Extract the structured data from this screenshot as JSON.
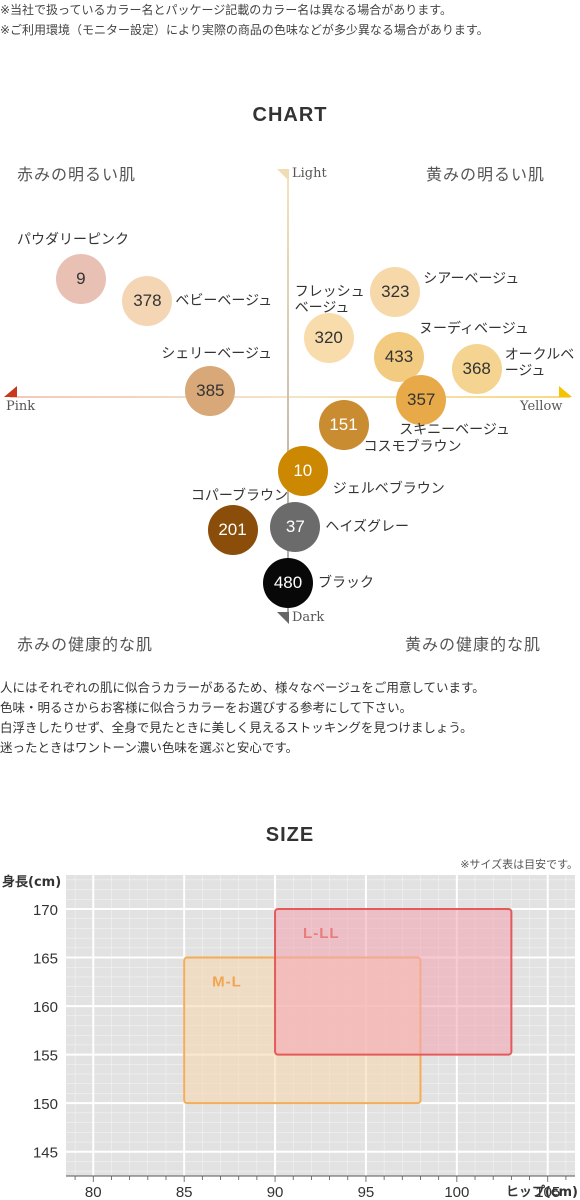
{
  "notes": [
    "※当社で扱っているカラー名とパッケージ記載のカラー名は異なる場合があります。",
    "※ご利用環境（モニター設定）により実際の商品の色味などが多少異なる場合があります。"
  ],
  "chart_title": "CHART",
  "chart_data": [
    {
      "type": "scatter",
      "title": "CHART",
      "axes": {
        "x": {
          "left_label": "Pink",
          "right_label": "Yellow"
        },
        "y": {
          "top_label": "Light",
          "bottom_label": "Dark"
        }
      },
      "quadrants": {
        "top_left": "赤みの明るい肌",
        "top_right": "黄みの明るい肌",
        "bottom_left": "赤みの健康的な肌",
        "bottom_right": "黄みの健康的な肌"
      },
      "points": [
        {
          "code": "9",
          "name": "パウダリーピンク",
          "x": -5.6,
          "y": 3.8,
          "color": "#e8c0b4",
          "text_color": "#333333"
        },
        {
          "code": "378",
          "name": "ベビーベージュ",
          "x": -3.8,
          "y": 3.1,
          "color": "#f5d6b4",
          "text_color": "#333333"
        },
        {
          "code": "385",
          "name": "シェリーベージュ",
          "x": -2.1,
          "y": 0.2,
          "color": "#d8a878",
          "text_color": "#333333"
        },
        {
          "code": "320",
          "name": "フレッシュベージュ",
          "x": 1.1,
          "y": 1.9,
          "color": "#f9dcac",
          "text_color": "#333333"
        },
        {
          "code": "323",
          "name": "シアーベージュ",
          "x": 2.9,
          "y": 3.4,
          "color": "#f7d8a8",
          "text_color": "#333333"
        },
        {
          "code": "433",
          "name": "ヌーディベージュ",
          "x": 3.0,
          "y": 1.3,
          "color": "#f2ca80",
          "text_color": "#333333"
        },
        {
          "code": "368",
          "name": "オークルベージュ",
          "x": 5.1,
          "y": 0.9,
          "color": "#f4d490",
          "text_color": "#333333"
        },
        {
          "code": "357",
          "name": "スキニーベージュ",
          "x": 3.6,
          "y": -0.1,
          "color": "#e8aa48",
          "text_color": "#333333"
        },
        {
          "code": "151",
          "name": "コスモブラウン",
          "x": 1.5,
          "y": -0.9,
          "color": "#c98c30",
          "text_color": "#ffffff"
        },
        {
          "code": "10",
          "name": "ジェルベブラウン",
          "x": 0.4,
          "y": -2.4,
          "color": "#cc8800",
          "text_color": "#ffffff"
        },
        {
          "code": "201",
          "name": "コパーブラウン",
          "x": -1.5,
          "y": -4.3,
          "color": "#8a4e0a",
          "text_color": "#ffffff"
        },
        {
          "code": "37",
          "name": "ヘイズグレー",
          "x": 0.2,
          "y": -4.2,
          "color": "#6b6b6b",
          "text_color": "#ffffff"
        },
        {
          "code": "480",
          "name": "ブラック",
          "x": 0.0,
          "y": -6.0,
          "color": "#080808",
          "text_color": "#ffffff"
        }
      ]
    },
    {
      "type": "area",
      "title": "SIZE",
      "xlabel": "ヒップ(cm)",
      "ylabel": "身長(cm)",
      "xlim": [
        78.5,
        106.5
      ],
      "ylim": [
        142.5,
        173.5
      ],
      "xticks": [
        80,
        85,
        90,
        95,
        100,
        105
      ],
      "yticks": [
        145,
        150,
        155,
        160,
        165,
        170
      ],
      "grid": true,
      "series": [
        {
          "name": "M-L",
          "x_range": [
            85,
            98
          ],
          "y_range": [
            150,
            165
          ],
          "fill": "#f8d8b0",
          "stroke": "#f3ad5a",
          "label_color": "#f2a550"
        },
        {
          "name": "L-LL",
          "x_range": [
            90,
            103
          ],
          "y_range": [
            155,
            170
          ],
          "fill": "#f3a8b4",
          "stroke": "#e45a5a",
          "label_color": "#e87c7c"
        }
      ]
    }
  ],
  "description": [
    "人にはそれぞれの肌に似合うカラーがあるため、様々なベージュをご用意しています。",
    "色味・明るさからお客様に似合うカラーをお選びする参考にして下さい。",
    "白浮きしたりせず、全身で見たときに美しく見えるストッキングを見つけましょう。",
    "迷ったときはワントーン濃い色味を選ぶと安心です。"
  ],
  "size_title": "SIZE",
  "size_note": "※サイズ表は目安です。",
  "colors": {
    "axis_light": "#f3ddb6",
    "axis_dark": "#b9b2a6",
    "pink_arrow": "#c8381c",
    "yellow_arrow": "#f4c400",
    "light_arrow": "#f0dcb5",
    "dark_arrow": "#666666",
    "grid_bg": "#e2e2e2"
  }
}
